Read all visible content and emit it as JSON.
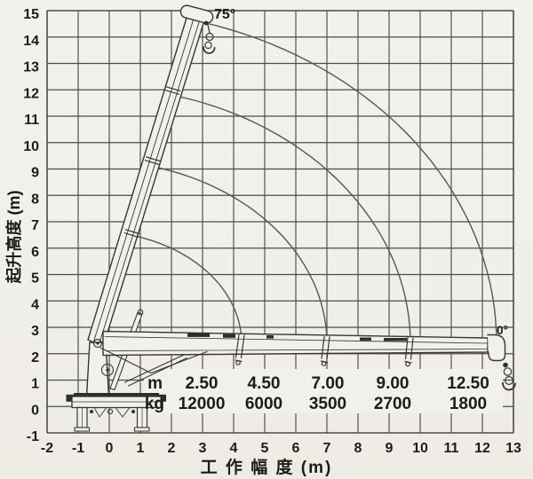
{
  "axes": {
    "x": {
      "title": "工 作 幅 度 (m)",
      "ticks": [
        "-2",
        "-1",
        "0",
        "1",
        "2",
        "3",
        "4",
        "5",
        "6",
        "7",
        "8",
        "9",
        "10",
        "11",
        "12",
        "13"
      ]
    },
    "y": {
      "title": "起升高度 (m)",
      "ticks": [
        "15",
        "14",
        "13",
        "12",
        "11",
        "10",
        "9",
        "8",
        "7",
        "6",
        "5",
        "4",
        "3",
        "2",
        "1",
        "0",
        "-1"
      ]
    }
  },
  "annotations": {
    "max_angle": "75°",
    "min_angle": "0°"
  },
  "capacity_table": {
    "radius_label": "m",
    "load_label": "kg",
    "radius_values": [
      "2.50",
      "4.50",
      "7.00",
      "9.00",
      "12.50"
    ],
    "load_values": [
      "12000",
      "6000",
      "3500",
      "2700",
      "1800"
    ]
  },
  "chart_data": {
    "type": "table",
    "title": "",
    "xlabel": "工作幅度 (m)",
    "ylabel": "起升高度 (m)",
    "xlim": [
      -2,
      13
    ],
    "ylim": [
      -1,
      15
    ],
    "x_ticks": [
      -2,
      -1,
      0,
      1,
      2,
      3,
      4,
      5,
      6,
      7,
      8,
      9,
      10,
      11,
      12,
      13
    ],
    "y_ticks": [
      -1,
      0,
      1,
      2,
      3,
      4,
      5,
      6,
      7,
      8,
      9,
      10,
      11,
      12,
      13,
      14,
      15
    ],
    "grid": true,
    "legend": false,
    "boom_angles_deg": [
      0,
      75
    ],
    "columns": [
      "working_radius_m",
      "capacity_kg"
    ],
    "rows": [
      [
        2.5,
        12000
      ],
      [
        4.5,
        6000
      ],
      [
        7.0,
        3500
      ],
      [
        9.0,
        2700
      ],
      [
        12.5,
        1800
      ]
    ]
  },
  "colors": {
    "paper": "#f2f0ea",
    "grid": "#4c4c4c",
    "arc": "#565656",
    "ink": "#363636",
    "text": "#1c1c1c"
  }
}
